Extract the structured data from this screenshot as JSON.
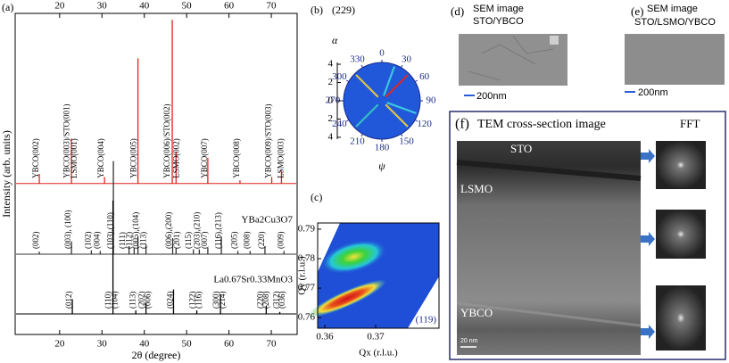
{
  "chart_data": [
    {
      "type": "xrd",
      "title": "(a)",
      "xlabel": "2θ (degree)",
      "ylabel": "Intensity (arb. units)",
      "xlim": [
        9.5,
        76.1
      ],
      "xticks": [
        20,
        30,
        40,
        50,
        60,
        70
      ],
      "ylim": [
        0,
        100
      ],
      "series": [
        {
          "color": "#e3221b",
          "baseline": 47,
          "x": [
            15.2,
            22.8,
            30.6,
            38.5,
            46.6,
            47.5,
            55.0,
            62.6,
            70.1,
            72.4
          ],
          "values": [
            50,
            61,
            49,
            86,
            98,
            57,
            55,
            48,
            49,
            51
          ],
          "labels": [
            {
              "text": "YBCO(002)",
              "x": 15.2
            },
            {
              "text": "YBCO(003)/STO(001)",
              "x": 22.4
            },
            {
              "text": "LSMO(001)",
              "x": 24.2
            },
            {
              "text": "YBCO(004)",
              "x": 30.6
            },
            {
              "text": "YBCO(005)",
              "x": 38.3
            },
            {
              "text": "YBCO(006)/STO(002)",
              "x": 46.2
            },
            {
              "text": "LSMO(002)",
              "x": 48.4
            },
            {
              "text": "YBCO(007)",
              "x": 55.0
            },
            {
              "text": "YBCO(008)",
              "x": 62.6
            },
            {
              "text": "YBCO(009)/STO(003)",
              "x": 70.1
            },
            {
              "text": "LSMO(003)",
              "x": 73.0
            }
          ]
        },
        {
          "name": "YBa2Cu3O7",
          "color": "#333333",
          "baseline": 25,
          "x": [
            15.2,
            22.8,
            27.5,
            29.6,
            32.7,
            36.4,
            37.6,
            38.5,
            40.4,
            46.7,
            47.5,
            51.6,
            53.0,
            55.0,
            58.2,
            62.1,
            65.0,
            68.5,
            73.0
          ],
          "values": [
            25.8,
            29,
            26.2,
            26,
            54,
            27.5,
            27,
            30.5,
            28,
            30,
            27,
            26.5,
            26.5,
            27,
            30.5,
            26,
            26,
            27.5,
            26
          ],
          "labels": [
            {
              "text": "(002)",
              "x": 15.2
            },
            {
              "text": "(003), (100)",
              "x": 22.8
            },
            {
              "text": "(102)",
              "x": 27.5
            },
            {
              "text": "(004)",
              "x": 29.6
            },
            {
              "text": "(103),(110)",
              "x": 32.8
            },
            {
              "text": "(111)",
              "x": 35.6
            },
            {
              "text": "(112)",
              "x": 37.2
            },
            {
              "text": "(005),(104)",
              "x": 38.8
            },
            {
              "text": "(113)",
              "x": 40.6
            },
            {
              "text": "(006),(200)",
              "x": 46.6
            },
            {
              "text": "(201)",
              "x": 48.5
            },
            {
              "text": "(115)",
              "x": 51.2
            },
            {
              "text": "(203),(210)",
              "x": 53.2
            },
            {
              "text": "(007)",
              "x": 55.0
            },
            {
              "text": "(116),(213)",
              "x": 58.3
            },
            {
              "text": "(205)",
              "x": 62.1
            },
            {
              "text": "(008)",
              "x": 65.0
            },
            {
              "text": "(220)",
              "x": 68.5
            },
            {
              "text": "(009)",
              "x": 73.0
            }
          ]
        },
        {
          "name": "La0.67Sr0.33MnO3",
          "color": "#000000",
          "baseline": 6.4,
          "x": [
            23.0,
            32.6,
            38.0,
            40.4,
            46.9,
            52.4,
            58.0,
            68.8,
            72.0
          ],
          "values": [
            11,
            41.7,
            7.5,
            9.7,
            14,
            7.5,
            12.5,
            9,
            7
          ],
          "labels": [
            {
              "text": "(012)",
              "x": 23.0
            },
            {
              "text": "(110)",
              "x": 32.2
            },
            {
              "text": "(104)",
              "x": 33.8
            },
            {
              "text": "(113)",
              "x": 38.0
            },
            {
              "text": "(202)",
              "x": 40.2
            },
            {
              "text": "(006)",
              "x": 41.6
            },
            {
              "text": "(024)",
              "x": 46.9
            },
            {
              "text": "(122)",
              "x": 52.2
            },
            {
              "text": "(116)",
              "x": 53.6
            },
            {
              "text": "(300)",
              "x": 57.8
            },
            {
              "text": "(214)",
              "x": 59.2
            },
            {
              "text": "(220)",
              "x": 68.2
            },
            {
              "text": "(208)",
              "x": 69.6
            },
            {
              "text": "(312)",
              "x": 72.0
            },
            {
              "text": "(036)",
              "x": 73.4
            }
          ]
        }
      ]
    },
    {
      "type": "polar",
      "title": "(b)",
      "subtitle": "(229)",
      "ylabel": "α",
      "xlabel": "ψ",
      "angle_ticks": [
        0,
        30,
        60,
        90,
        120,
        150,
        180,
        210,
        240,
        270,
        300,
        330
      ],
      "ylim": [
        -4.2,
        4.2
      ],
      "yticks": [
        4,
        2,
        0,
        {
          "value": -2,
          "label": "2"
        },
        {
          "value": -4,
          "label": "4"
        }
      ]
    },
    {
      "type": "map",
      "title": "(c)",
      "annotation": "(119)",
      "xlabel": "Qx (r.l.u.)",
      "ylabel": "Qy (r.l.u.)",
      "xlim": [
        0.3586,
        0.38245
      ],
      "xticks": [
        0.36,
        0.37
      ],
      "ylim": [
        0.7564,
        0.7921
      ],
      "yticks": [
        0.76,
        0.77,
        0.78,
        0.79
      ]
    }
  ],
  "panels": {
    "d": {
      "label": "(d)",
      "caption": [
        "SEM image",
        "STO/YBCO"
      ],
      "scale_bar": "200nm"
    },
    "e": {
      "label": "(e)",
      "caption": [
        "SEM image",
        "STO/LSMO/YBCO"
      ],
      "scale_bar": "200nm"
    },
    "f": {
      "label": "(f)",
      "title": "TEM cross-section image",
      "fft_title": "FFT",
      "layers": [
        "STO",
        "LSMO",
        "YBCO"
      ],
      "scale_bar": "20 nm"
    }
  }
}
